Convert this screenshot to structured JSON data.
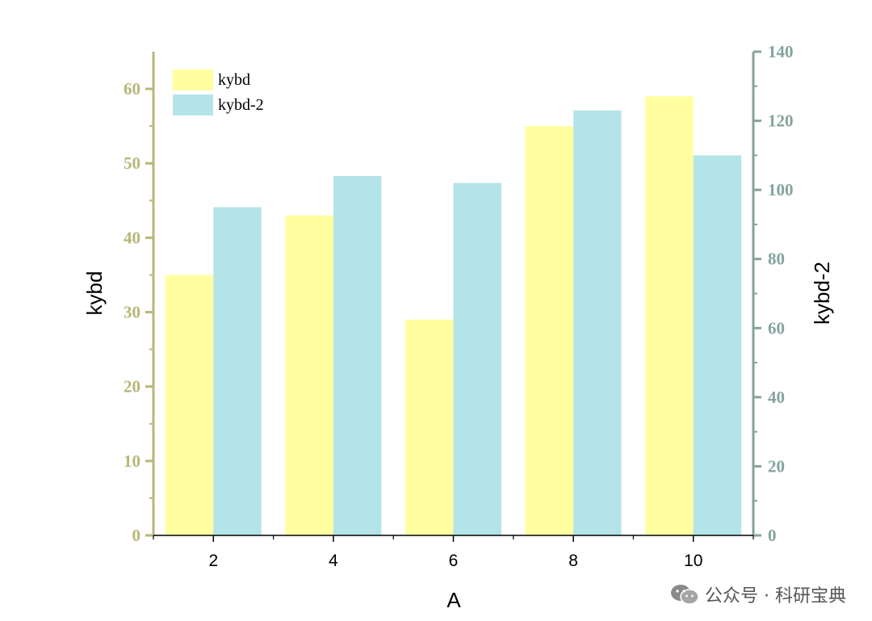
{
  "chart_data": {
    "type": "bar",
    "xlabel": "A",
    "ylabel": "kybd",
    "y2label": "kybd-2",
    "categories": [
      "2",
      "4",
      "6",
      "8",
      "10"
    ],
    "series": [
      {
        "name": "kybd",
        "axis": "left",
        "values": [
          35,
          43,
          29,
          55,
          59
        ]
      },
      {
        "name": "kybd-2",
        "axis": "right",
        "values": [
          95,
          104,
          102,
          123,
          110
        ]
      }
    ],
    "ylim": [
      0,
      65
    ],
    "yticks": [
      0,
      10,
      20,
      30,
      40,
      50,
      60
    ],
    "y2lim": [
      0,
      140
    ],
    "y2ticks": [
      0,
      20,
      40,
      60,
      80,
      100,
      120,
      140
    ],
    "legend_position": "top-left",
    "grid": false
  },
  "colors": {
    "series1": "#FFFFA0",
    "series2": "#B5E4E8",
    "left_axis": "#B8B778",
    "right_axis": "#85A39E",
    "bottom_axis": "#000000"
  },
  "watermark": {
    "text": "公众号 · 科研宝典",
    "icon": "wechat-icon"
  }
}
